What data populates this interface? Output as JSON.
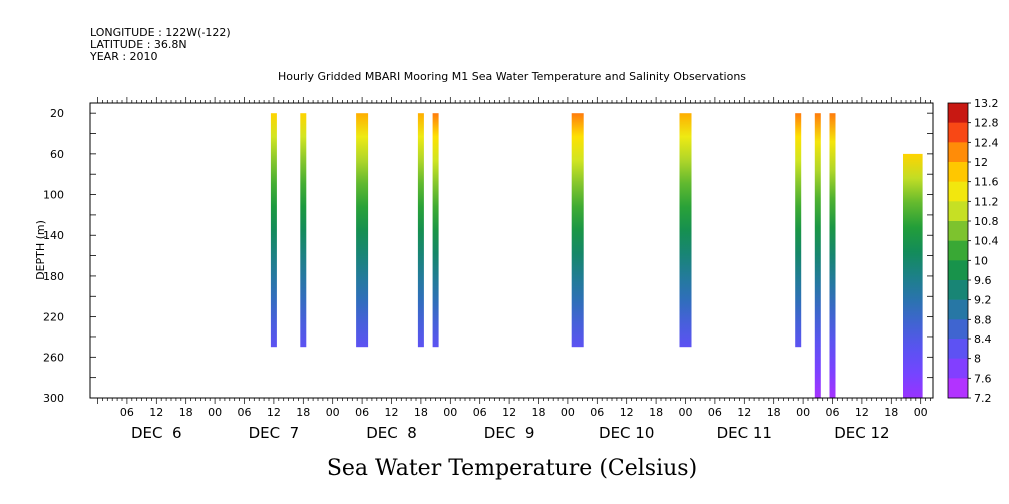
{
  "header": {
    "longitude": "LONGITUDE : 122W(-122)",
    "latitude": "LATITUDE : 36.8N",
    "year": "YEAR : 2010",
    "title": "Hourly Gridded MBARI Mooring M1 Sea Water Temperature and Salinity Observations"
  },
  "chart_data": {
    "type": "heatmap",
    "title": "Hourly Gridded MBARI Mooring M1 Sea Water Temperature and Salinity Observations",
    "xlabel": "",
    "ylabel": "DEPTH (m)",
    "bottom_label": "Sea Water Temperature (Celsius)",
    "y_axis": {
      "range": [
        300,
        0
      ],
      "ticks": [
        20,
        60,
        100,
        140,
        180,
        220,
        260,
        300
      ],
      "inverted": true
    },
    "x_axis": {
      "range_hours": [
        0,
        171
      ],
      "hour_ticks": [
        "06",
        "12",
        "18",
        "00",
        "06",
        "12",
        "18",
        "00",
        "06",
        "12",
        "18",
        "00",
        "06",
        "12",
        "18",
        "00",
        "06",
        "12",
        "18",
        "00",
        "06",
        "12",
        "18",
        "00",
        "06",
        "12",
        "18",
        "00"
      ],
      "day_labels": [
        "DEC  6",
        "DEC  7",
        "DEC  8",
        "DEC  9",
        "DEC 10",
        "DEC 11",
        "DEC 12"
      ]
    },
    "colorbar": {
      "ticks": [
        "13.2",
        "12.8",
        "12.4",
        "12",
        "11.6",
        "11.2",
        "10.8",
        "10.4",
        "10",
        "9.6",
        "9.2",
        "8.8",
        "8.4",
        "8",
        "7.6",
        "7.2"
      ],
      "min": 7.2,
      "max": 13.2
    },
    "strips": [
      {
        "time": "DEC 7 12:00",
        "depth_top": 20,
        "depth_bottom": 250,
        "temp_top": 11.7,
        "temp_bottom": 8.2
      },
      {
        "time": "DEC 7 18:00",
        "depth_top": 20,
        "depth_bottom": 250,
        "temp_top": 11.7,
        "temp_bottom": 8.2
      },
      {
        "time": "DEC 8 06:00",
        "depth_top": 20,
        "depth_bottom": 250,
        "temp_top": 12.0,
        "temp_bottom": 8.2
      },
      {
        "time": "DEC 8 18:00",
        "depth_top": 20,
        "depth_bottom": 250,
        "temp_top": 12.0,
        "temp_bottom": 8.2
      },
      {
        "time": "DEC 8 21:00",
        "depth_top": 20,
        "depth_bottom": 250,
        "temp_top": 12.3,
        "temp_bottom": 8.2
      },
      {
        "time": "DEC 10 02:00",
        "depth_top": 20,
        "depth_bottom": 250,
        "temp_top": 12.3,
        "temp_bottom": 8.2
      },
      {
        "time": "DEC 11 00:00",
        "depth_top": 20,
        "depth_bottom": 250,
        "temp_top": 12.0,
        "temp_bottom": 8.2
      },
      {
        "time": "DEC 11 23:00",
        "depth_top": 20,
        "depth_bottom": 250,
        "temp_top": 12.3,
        "temp_bottom": 8.2
      },
      {
        "time": "DEC 12 03:00",
        "depth_top": 20,
        "depth_bottom": 300,
        "temp_top": 12.3,
        "temp_bottom": 7.5
      },
      {
        "time": "DEC 12 06:00",
        "depth_top": 20,
        "depth_bottom": 300,
        "temp_top": 12.3,
        "temp_bottom": 7.5
      },
      {
        "time": "DEC 12 21:00 - DEC 13 01:00",
        "depth_top": 60,
        "depth_bottom": 300,
        "temp_top": 11.7,
        "temp_bottom": 7.6
      }
    ]
  }
}
